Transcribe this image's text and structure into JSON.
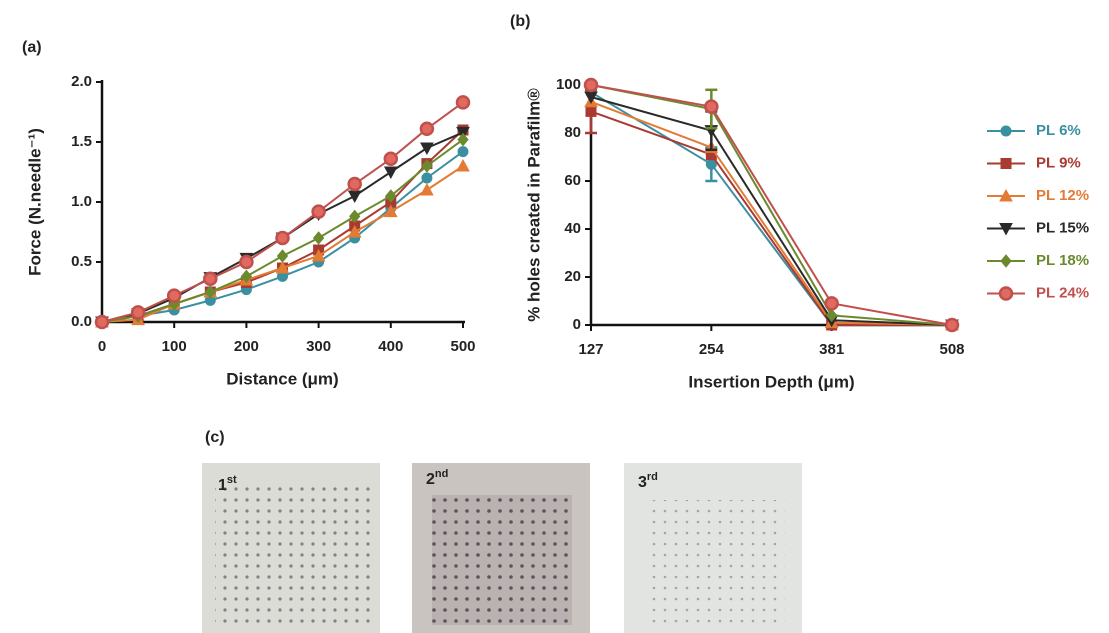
{
  "chart_data": [
    {
      "type": "line",
      "label": "(a)",
      "x_label": "Distance (μm)",
      "y_label": "Force (N.needle⁻¹)",
      "x": [
        0,
        50,
        100,
        150,
        200,
        250,
        300,
        350,
        400,
        450,
        500
      ],
      "xlim": [
        0,
        500
      ],
      "xticks": [
        0,
        100,
        200,
        300,
        400,
        500
      ],
      "ylim": [
        0,
        2
      ],
      "yticks": [
        {
          "value": 0,
          "label": "0.0"
        },
        {
          "value": 0.5,
          "label": "0.5"
        },
        {
          "value": 1,
          "label": "1.0"
        },
        {
          "value": 1.5,
          "label": "1.5"
        },
        {
          "value": 2,
          "label": "2.0"
        }
      ],
      "series": [
        {
          "color": "#3a8fa0",
          "marker": "circle",
          "values": [
            0,
            0.05,
            0.1,
            0.18,
            0.27,
            0.38,
            0.5,
            0.7,
            0.95,
            1.2,
            1.42
          ]
        },
        {
          "color": "#a83a32",
          "marker": "square",
          "values": [
            0,
            0.05,
            0.15,
            0.25,
            0.33,
            0.45,
            0.6,
            0.8,
            1.0,
            1.32,
            1.6
          ]
        },
        {
          "color": "#e37b35",
          "marker": "triangle",
          "values": [
            0,
            0.02,
            0.15,
            0.25,
            0.35,
            0.45,
            0.55,
            0.75,
            0.92,
            1.1,
            1.3
          ]
        },
        {
          "color": "#2a2a2a",
          "marker": "triangle-down",
          "values": [
            0,
            0.07,
            0.2,
            0.37,
            0.53,
            0.7,
            0.9,
            1.05,
            1.25,
            1.45,
            1.58
          ]
        },
        {
          "color": "#6b8a2e",
          "marker": "diamond",
          "values": [
            0,
            0.05,
            0.15,
            0.25,
            0.38,
            0.55,
            0.7,
            0.88,
            1.05,
            1.3,
            1.52
          ]
        },
        {
          "color": "#c0504d",
          "marker": "ring",
          "values": [
            0,
            0.08,
            0.22,
            0.36,
            0.5,
            0.7,
            0.92,
            1.15,
            1.36,
            1.61,
            1.83
          ]
        }
      ]
    },
    {
      "type": "line",
      "label": "(b)",
      "legend": "right",
      "x_label": "Insertion Depth (μm)",
      "y_label": "% holes created in Parafilm®",
      "x": [
        127,
        254,
        381,
        508
      ],
      "xlim": [
        127,
        508
      ],
      "xticks": [
        127,
        254,
        381,
        508
      ],
      "ylim": [
        0,
        100
      ],
      "yticks": [
        0,
        20,
        40,
        60,
        80,
        100
      ],
      "series": [
        {
          "name": "PL 6%",
          "color": "#3a8fa0",
          "marker": "circle",
          "values": [
            97,
            67,
            0,
            0
          ],
          "errors": [
            null,
            7,
            null,
            null
          ]
        },
        {
          "name": "PL 9%",
          "color": "#a83a32",
          "marker": "square",
          "values": [
            89,
            71,
            0,
            0
          ],
          "errors": [
            9,
            null,
            null,
            null
          ]
        },
        {
          "name": "PL 12%",
          "color": "#e37b35",
          "marker": "triangle",
          "values": [
            93,
            74,
            1,
            0
          ]
        },
        {
          "name": "PL 15%",
          "color": "#2a2a2a",
          "marker": "triangle-down",
          "values": [
            95,
            81,
            2,
            0
          ],
          "errors": [
            null,
            8,
            null,
            null
          ]
        },
        {
          "name": "PL 18%",
          "color": "#6b8a2e",
          "marker": "diamond",
          "values": [
            100,
            90,
            4,
            0
          ],
          "errors": [
            null,
            8,
            null,
            null
          ]
        },
        {
          "name": "PL 24%",
          "color": "#c0504d",
          "marker": "ring",
          "values": [
            100,
            91,
            9,
            0
          ]
        }
      ]
    }
  ],
  "panel_c": {
    "label": "(c)",
    "images": [
      {
        "number": "1",
        "suffix": "st"
      },
      {
        "number": "2",
        "suffix": "nd"
      },
      {
        "number": "3",
        "suffix": "rd"
      }
    ]
  }
}
